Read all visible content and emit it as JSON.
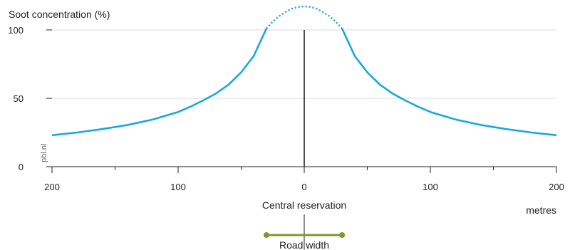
{
  "chart_data": {
    "type": "line",
    "title": "Soot concentration (%)",
    "xlabel": "metres",
    "ylabel": "",
    "xlim": [
      -200,
      200
    ],
    "ylim": [
      0,
      100
    ],
    "x_ticks": [
      -200,
      -100,
      0,
      100,
      200
    ],
    "x_tick_labels": [
      "200",
      "100",
      "0",
      "100",
      "200"
    ],
    "x_minor_ticks": [
      -150,
      -50,
      50,
      150
    ],
    "y_ticks": [
      0,
      50,
      100
    ],
    "y_tick_labels": [
      "0",
      "50",
      "100"
    ],
    "grid": "horizontal",
    "series": [
      {
        "style": "solid",
        "color": "#1aa7e0",
        "segments": [
          [
            [
              -200,
              23
            ],
            [
              -180,
              25
            ],
            [
              -160,
              27.5
            ],
            [
              -140,
              30.5
            ],
            [
              -120,
              34.5
            ],
            [
              -100,
              40
            ],
            [
              -90,
              44
            ],
            [
              -80,
              48.5
            ],
            [
              -70,
              53.5
            ],
            [
              -60,
              60
            ],
            [
              -50,
              69
            ],
            [
              -40,
              81
            ],
            [
              -30,
              101
            ]
          ],
          [
            [
              30,
              101
            ],
            [
              40,
              81
            ],
            [
              50,
              69
            ],
            [
              60,
              60
            ],
            [
              70,
              53.5
            ],
            [
              80,
              48.5
            ],
            [
              90,
              44
            ],
            [
              100,
              40
            ],
            [
              120,
              34.5
            ],
            [
              140,
              30.5
            ],
            [
              160,
              27.5
            ],
            [
              180,
              25
            ],
            [
              200,
              23
            ]
          ]
        ]
      },
      {
        "style": "dotted",
        "color": "#1aa7e0",
        "segments": [
          [
            [
              -30,
              101
            ],
            [
              -25,
              106
            ],
            [
              -20,
              110
            ],
            [
              -15,
              113
            ],
            [
              -10,
              115.5
            ],
            [
              -5,
              116.8
            ],
            [
              0,
              117.2
            ],
            [
              5,
              116.8
            ],
            [
              10,
              115.5
            ],
            [
              15,
              113
            ],
            [
              20,
              110
            ],
            [
              25,
              106
            ],
            [
              30,
              101
            ]
          ]
        ]
      }
    ],
    "annotations": {
      "central_reservation": "Central reservation",
      "road_width": "Road width",
      "road_width_range": [
        -30,
        30
      ],
      "watermark": "pbl.nl"
    },
    "colors": {
      "line": "#1aa7e0",
      "road": "#7a9a2a",
      "axis": "#222222",
      "grid": "#dddddd"
    }
  }
}
